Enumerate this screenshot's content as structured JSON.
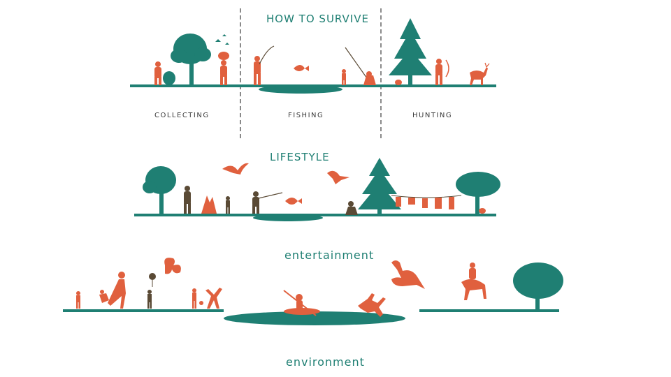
{
  "colors": {
    "teal": "#1f7f73",
    "orange": "#e0603e",
    "brown": "#5a4a35",
    "label": "#3a3a3a",
    "divider": "#8a8a8a"
  },
  "sections": {
    "survive": {
      "title": "HOW TO SURVIVE",
      "panels": [
        {
          "label": "COLLECTING"
        },
        {
          "label": "FISHING"
        },
        {
          "label": "HUNTING"
        }
      ]
    },
    "lifestyle": {
      "title": "LIFESTYLE"
    },
    "entertainment": {
      "title": "entertainment"
    },
    "environment": {
      "title": "environment"
    }
  }
}
